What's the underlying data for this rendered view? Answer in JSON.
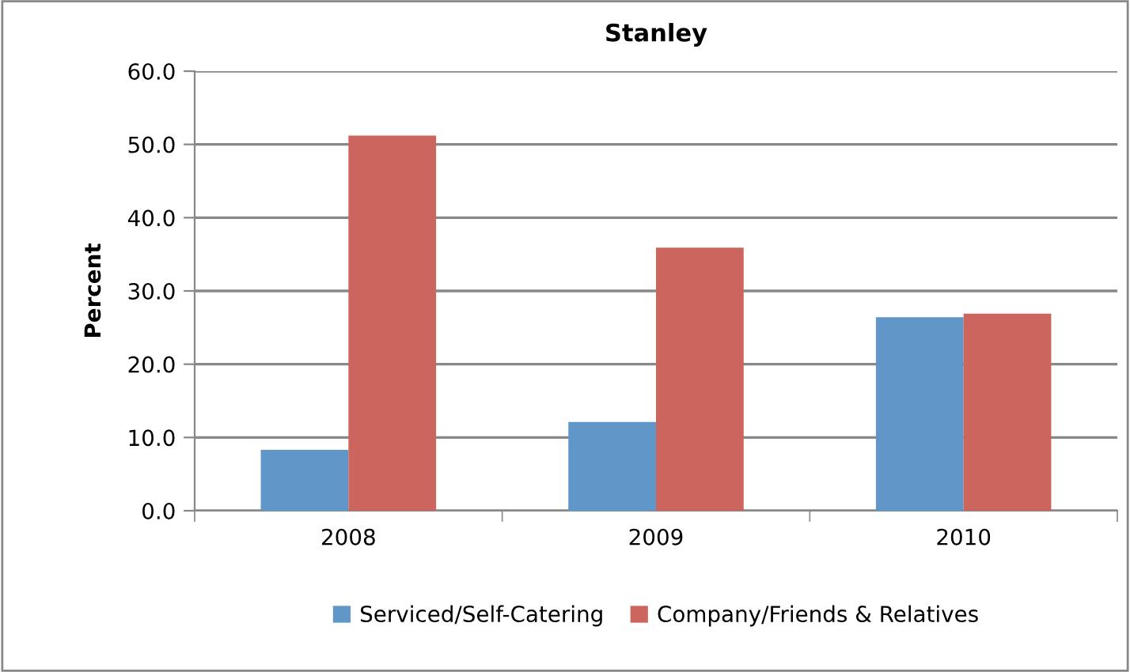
{
  "chart_data": {
    "type": "bar",
    "title": "Stanley",
    "ylabel": "Percent",
    "categories": [
      "2008",
      "2009",
      "2010"
    ],
    "series": [
      {
        "name": "Serviced/Self-Catering",
        "color": "#6096c8",
        "values": [
          8.3,
          12.1,
          26.4
        ]
      },
      {
        "name": "Company/Friends & Relatives",
        "color": "#cb655d",
        "values": [
          51.2,
          35.9,
          26.9
        ]
      }
    ],
    "ylim": [
      0,
      60
    ],
    "yticks": [
      {
        "value": 0,
        "label": "0.0"
      },
      {
        "value": 10,
        "label": "10.0"
      },
      {
        "value": 20,
        "label": "20.0"
      },
      {
        "value": 30,
        "label": "30.0"
      },
      {
        "value": 40,
        "label": "40.0"
      },
      {
        "value": 50,
        "label": "50.0"
      },
      {
        "value": 60,
        "label": "60.0"
      }
    ],
    "grid": "y",
    "legend": "bottom"
  }
}
